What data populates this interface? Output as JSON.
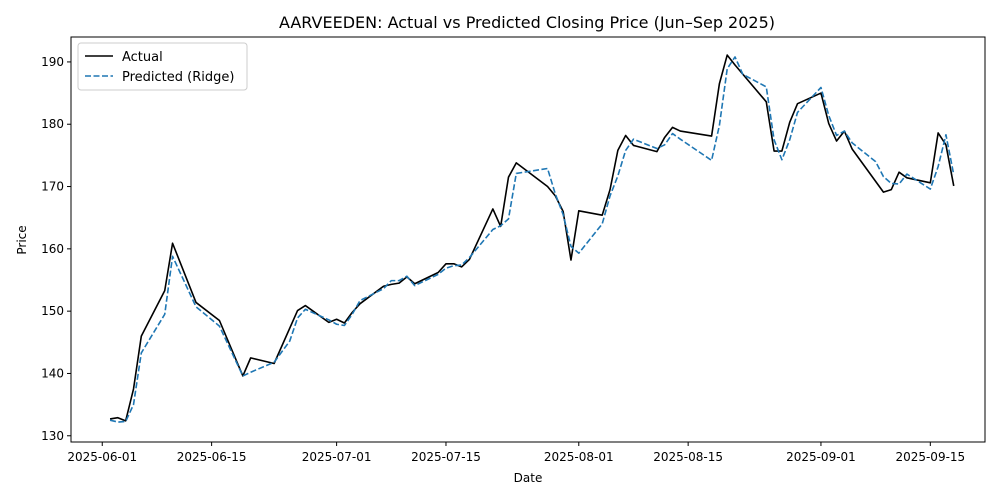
{
  "chart_data": {
    "type": "line",
    "title": "AARVEEDEN: Actual vs Predicted Closing Price (Jun–Sep 2025)",
    "xlabel": "Date",
    "ylabel": "Price",
    "xlim": [
      "2025-05-28",
      "2025-09-22"
    ],
    "ylim": [
      129,
      194
    ],
    "x_ticks": [
      "2025-06-01",
      "2025-06-15",
      "2025-07-01",
      "2025-07-15",
      "2025-08-01",
      "2025-08-15",
      "2025-09-01",
      "2025-09-15"
    ],
    "y_ticks": [
      130,
      140,
      150,
      160,
      170,
      180,
      190
    ],
    "grid": false,
    "legend_position": "upper-left",
    "series": [
      {
        "name": "Actual",
        "color": "#000000",
        "style": "solid",
        "points": [
          [
            "2025-06-02",
            132.7
          ],
          [
            "2025-06-03",
            132.9
          ],
          [
            "2025-06-04",
            132.4
          ],
          [
            "2025-06-05",
            137.5
          ],
          [
            "2025-06-06",
            146.0
          ],
          [
            "2025-06-09",
            153.3
          ],
          [
            "2025-06-10",
            160.9
          ],
          [
            "2025-06-13",
            151.4
          ],
          [
            "2025-06-16",
            148.5
          ],
          [
            "2025-06-19",
            139.6
          ],
          [
            "2025-06-20",
            142.5
          ],
          [
            "2025-06-23",
            141.6
          ],
          [
            "2025-06-26",
            150.1
          ],
          [
            "2025-06-27",
            150.9
          ],
          [
            "2025-06-30",
            148.2
          ],
          [
            "2025-07-01",
            148.7
          ],
          [
            "2025-07-02",
            148.1
          ],
          [
            "2025-07-03",
            149.8
          ],
          [
            "2025-07-04",
            151.2
          ],
          [
            "2025-07-07",
            154.0
          ],
          [
            "2025-07-08",
            154.3
          ],
          [
            "2025-07-09",
            154.5
          ],
          [
            "2025-07-10",
            155.5
          ],
          [
            "2025-07-11",
            154.4
          ],
          [
            "2025-07-14",
            156.2
          ],
          [
            "2025-07-15",
            157.6
          ],
          [
            "2025-07-16",
            157.6
          ],
          [
            "2025-07-17",
            157.1
          ],
          [
            "2025-07-18",
            158.3
          ],
          [
            "2025-07-21",
            166.4
          ],
          [
            "2025-07-22",
            163.6
          ],
          [
            "2025-07-23",
            171.5
          ],
          [
            "2025-07-24",
            173.8
          ],
          [
            "2025-07-28",
            170.0
          ],
          [
            "2025-07-29",
            168.5
          ],
          [
            "2025-07-30",
            166.0
          ],
          [
            "2025-07-31",
            158.2
          ],
          [
            "2025-08-01",
            166.1
          ],
          [
            "2025-08-04",
            165.4
          ],
          [
            "2025-08-05",
            169.5
          ],
          [
            "2025-08-06",
            175.8
          ],
          [
            "2025-08-07",
            178.2
          ],
          [
            "2025-08-08",
            176.6
          ],
          [
            "2025-08-11",
            175.6
          ],
          [
            "2025-08-12",
            177.9
          ],
          [
            "2025-08-13",
            179.5
          ],
          [
            "2025-08-14",
            178.9
          ],
          [
            "2025-08-18",
            178.1
          ],
          [
            "2025-08-19",
            186.5
          ],
          [
            "2025-08-20",
            191.1
          ],
          [
            "2025-08-21",
            189.5
          ],
          [
            "2025-08-25",
            183.6
          ],
          [
            "2025-08-26",
            175.7
          ],
          [
            "2025-08-27",
            175.7
          ],
          [
            "2025-08-28",
            180.3
          ],
          [
            "2025-08-29",
            183.3
          ],
          [
            "2025-09-01",
            185.0
          ],
          [
            "2025-09-02",
            180.1
          ],
          [
            "2025-09-03",
            177.3
          ],
          [
            "2025-09-04",
            178.9
          ],
          [
            "2025-09-05",
            176.0
          ],
          [
            "2025-09-09",
            169.1
          ],
          [
            "2025-09-10",
            169.5
          ],
          [
            "2025-09-11",
            172.3
          ],
          [
            "2025-09-12",
            171.4
          ],
          [
            "2025-09-15",
            170.6
          ],
          [
            "2025-09-16",
            178.6
          ],
          [
            "2025-09-17",
            176.7
          ],
          [
            "2025-09-18",
            170.1
          ]
        ]
      },
      {
        "name": "Predicted (Ridge)",
        "color": "#1f77b4",
        "style": "dashed",
        "points": [
          [
            "2025-06-02",
            132.5
          ],
          [
            "2025-06-03",
            132.2
          ],
          [
            "2025-06-04",
            132.3
          ],
          [
            "2025-06-05",
            135.0
          ],
          [
            "2025-06-06",
            143.3
          ],
          [
            "2025-06-09",
            149.5
          ],
          [
            "2025-06-10",
            158.8
          ],
          [
            "2025-06-13",
            150.7
          ],
          [
            "2025-06-16",
            147.6
          ],
          [
            "2025-06-19",
            139.6
          ],
          [
            "2025-06-20",
            140.2
          ],
          [
            "2025-06-23",
            141.8
          ],
          [
            "2025-06-25",
            145.2
          ],
          [
            "2025-06-26",
            148.9
          ],
          [
            "2025-06-27",
            150.3
          ],
          [
            "2025-06-30",
            148.6
          ],
          [
            "2025-07-01",
            147.9
          ],
          [
            "2025-07-02",
            147.7
          ],
          [
            "2025-07-03",
            149.5
          ],
          [
            "2025-07-04",
            151.7
          ],
          [
            "2025-07-07",
            153.6
          ],
          [
            "2025-07-08",
            154.9
          ],
          [
            "2025-07-09",
            154.9
          ],
          [
            "2025-07-10",
            155.6
          ],
          [
            "2025-07-11",
            154.1
          ],
          [
            "2025-07-14",
            155.9
          ],
          [
            "2025-07-15",
            156.9
          ],
          [
            "2025-07-16",
            157.3
          ],
          [
            "2025-07-17",
            157.4
          ],
          [
            "2025-07-18",
            158.6
          ],
          [
            "2025-07-21",
            163.1
          ],
          [
            "2025-07-22",
            163.7
          ],
          [
            "2025-07-23",
            164.8
          ],
          [
            "2025-07-24",
            172.1
          ],
          [
            "2025-07-28",
            172.9
          ],
          [
            "2025-07-29",
            168.8
          ],
          [
            "2025-07-30",
            165.5
          ],
          [
            "2025-07-31",
            160.4
          ],
          [
            "2025-08-01",
            159.3
          ],
          [
            "2025-08-04",
            164.0
          ],
          [
            "2025-08-05",
            168.5
          ],
          [
            "2025-08-06",
            171.7
          ],
          [
            "2025-08-07",
            175.8
          ],
          [
            "2025-08-08",
            177.6
          ],
          [
            "2025-08-11",
            176.1
          ],
          [
            "2025-08-12",
            176.7
          ],
          [
            "2025-08-13",
            178.5
          ],
          [
            "2025-08-14",
            177.6
          ],
          [
            "2025-08-18",
            174.2
          ],
          [
            "2025-08-19",
            179.8
          ],
          [
            "2025-08-20",
            188.9
          ],
          [
            "2025-08-21",
            190.8
          ],
          [
            "2025-08-22",
            188.0
          ],
          [
            "2025-08-25",
            186.0
          ],
          [
            "2025-08-26",
            177.5
          ],
          [
            "2025-08-27",
            174.3
          ],
          [
            "2025-08-28",
            177.5
          ],
          [
            "2025-08-29",
            181.9
          ],
          [
            "2025-09-01",
            185.9
          ],
          [
            "2025-09-02",
            181.4
          ],
          [
            "2025-09-03",
            178.2
          ],
          [
            "2025-09-04",
            178.9
          ],
          [
            "2025-09-05",
            177.0
          ],
          [
            "2025-09-08",
            174.0
          ],
          [
            "2025-09-09",
            171.6
          ],
          [
            "2025-09-10",
            170.5
          ],
          [
            "2025-09-11",
            170.4
          ],
          [
            "2025-09-12",
            172.0
          ],
          [
            "2025-09-15",
            169.6
          ],
          [
            "2025-09-16",
            173.2
          ],
          [
            "2025-09-17",
            178.3
          ],
          [
            "2025-09-18",
            171.9
          ]
        ]
      }
    ]
  }
}
